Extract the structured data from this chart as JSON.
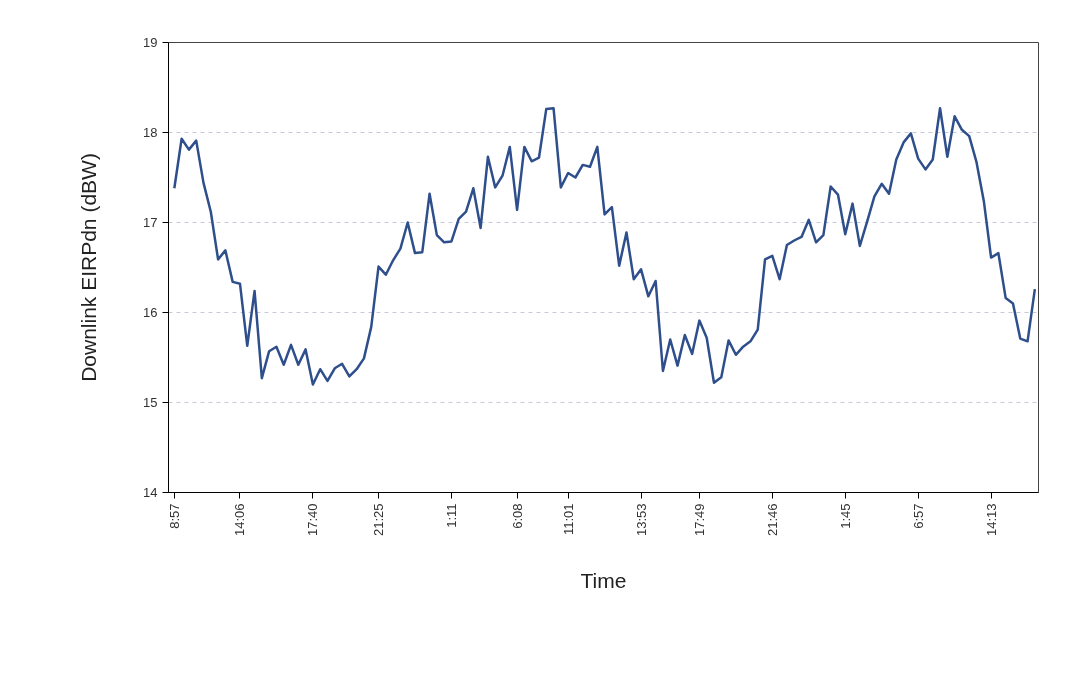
{
  "chart_data": {
    "type": "line",
    "xlabel": "Time",
    "ylabel": "Downlink EIRPdn (dBW)",
    "categories": [
      "8:57",
      null,
      null,
      null,
      null,
      null,
      null,
      null,
      null,
      "14:06",
      null,
      null,
      null,
      null,
      null,
      null,
      null,
      null,
      null,
      "17:40",
      null,
      null,
      null,
      null,
      null,
      null,
      null,
      null,
      "21:25",
      null,
      null,
      null,
      null,
      null,
      null,
      null,
      null,
      null,
      "1:11",
      null,
      null,
      null,
      null,
      null,
      null,
      null,
      null,
      "6:08",
      null,
      null,
      null,
      null,
      null,
      null,
      "11:01",
      null,
      null,
      null,
      null,
      null,
      null,
      null,
      null,
      null,
      "13:53",
      null,
      null,
      null,
      null,
      null,
      null,
      null,
      "17:49",
      null,
      null,
      null,
      null,
      null,
      null,
      null,
      null,
      null,
      "21:46",
      null,
      null,
      null,
      null,
      null,
      null,
      null,
      null,
      null,
      "1:45",
      null,
      null,
      null,
      null,
      null,
      null,
      null,
      null,
      null,
      "6:57",
      null,
      null,
      null,
      null,
      null,
      null,
      null,
      null,
      null,
      "14:13",
      null,
      null,
      null,
      null,
      null,
      null
    ],
    "series": [
      {
        "color": "#2f4f8c",
        "values": [
          17.38,
          17.93,
          17.81,
          17.91,
          17.44,
          17.12,
          16.59,
          16.69,
          16.34,
          16.32,
          15.63,
          16.24,
          15.27,
          15.57,
          15.62,
          15.42,
          15.64,
          15.42,
          15.59,
          15.2,
          15.37,
          15.24,
          15.38,
          15.43,
          15.29,
          15.37,
          15.49,
          15.84,
          16.51,
          16.42,
          16.58,
          16.71,
          17.0,
          16.66,
          16.67,
          17.32,
          16.86,
          16.78,
          16.79,
          17.04,
          17.12,
          17.38,
          16.94,
          17.73,
          17.39,
          17.52,
          17.84,
          17.14,
          17.84,
          17.68,
          17.72,
          18.26,
          18.27,
          17.39,
          17.55,
          17.5,
          17.64,
          17.62,
          17.84,
          17.09,
          17.17,
          16.52,
          16.89,
          16.37,
          16.48,
          16.18,
          16.35,
          15.35,
          15.7,
          15.41,
          15.75,
          15.54,
          15.91,
          15.72,
          15.22,
          15.28,
          15.69,
          15.53,
          15.62,
          15.68,
          15.81,
          16.59,
          16.63,
          16.37,
          16.75,
          16.8,
          16.84,
          17.03,
          16.78,
          16.86,
          17.4,
          17.31,
          16.87,
          17.21,
          16.74,
          17.01,
          17.29,
          17.43,
          17.32,
          17.7,
          17.89,
          17.99,
          17.71,
          17.59,
          17.7,
          18.27,
          17.73,
          18.18,
          18.03,
          17.96,
          17.67,
          17.24,
          16.61,
          16.66,
          16.16,
          16.1,
          15.71,
          15.68,
          16.26
        ]
      }
    ],
    "ylim": [
      14,
      19
    ],
    "yticks": [
      14,
      15,
      16,
      17,
      18,
      19
    ],
    "grid": "y",
    "line_style": "solid"
  }
}
